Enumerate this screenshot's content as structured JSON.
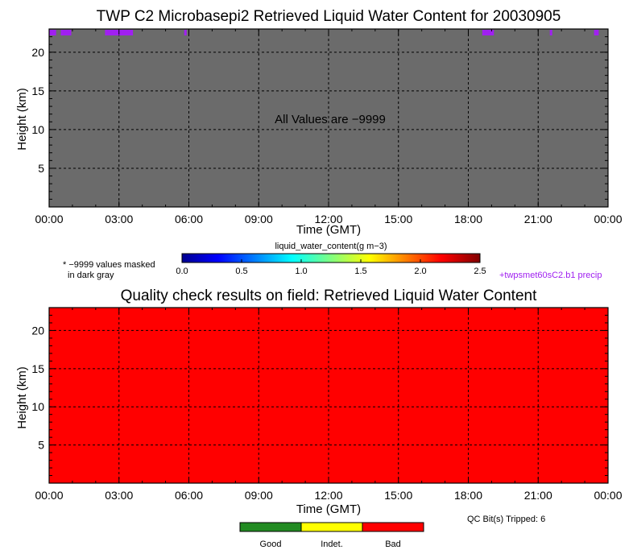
{
  "chart_data": [
    {
      "type": "heatmap",
      "title": "TWP C2 Microbasepi2 Retrieved Liquid Water Content for 20030905",
      "xlabel": "Time (GMT)",
      "ylabel": "Height (km)",
      "x_tick_labels": [
        "00:00",
        "03:00",
        "06:00",
        "09:00",
        "12:00",
        "15:00",
        "18:00",
        "21:00",
        "00:00"
      ],
      "x_ticks_hours": [
        0,
        3,
        6,
        9,
        12,
        15,
        18,
        21,
        24
      ],
      "y_ticks": [
        5,
        10,
        15,
        20
      ],
      "xlim_hours": [
        0,
        24
      ],
      "ylim_km": [
        0,
        23
      ],
      "grid": true,
      "fill_color": "#6b6b6b",
      "annotation": "All Values are −9999",
      "precip_color": "#a020f0",
      "precip_segments_hours": [
        [
          0.0,
          0.3
        ],
        [
          0.5,
          0.95
        ],
        [
          2.4,
          3.6
        ],
        [
          5.8,
          5.9
        ],
        [
          18.6,
          19.1
        ],
        [
          21.5,
          21.6
        ],
        [
          23.4,
          23.6
        ]
      ],
      "colorbar": {
        "label": "liquid_water_content(g m−3)",
        "ticks": [
          "0.0",
          "0.5",
          "1.0",
          "1.5",
          "2.0",
          "2.5"
        ],
        "range": [
          0,
          2.5
        ]
      },
      "mask_note_line1": "* −9999 values masked",
      "mask_note_line2": "in dark gray",
      "precip_note": "+twpsmet60sC2.b1 precip"
    },
    {
      "type": "heatmap",
      "title": "Quality check results on field: Retrieved Liquid Water Content",
      "xlabel": "Time (GMT)",
      "ylabel": "Height (km)",
      "x_tick_labels": [
        "00:00",
        "03:00",
        "06:00",
        "09:00",
        "12:00",
        "15:00",
        "18:00",
        "21:00",
        "00:00"
      ],
      "x_ticks_hours": [
        0,
        3,
        6,
        9,
        12,
        15,
        18,
        21,
        24
      ],
      "y_ticks": [
        5,
        10,
        15,
        20
      ],
      "xlim_hours": [
        0,
        24
      ],
      "ylim_km": [
        0,
        23
      ],
      "grid": true,
      "fill_color": "#ff0000",
      "qc_note": "QC Bit(s) Tripped: 6",
      "legend": [
        {
          "label": "Good",
          "color": "#228b22"
        },
        {
          "label": "Indet.",
          "color": "#ffff00"
        },
        {
          "label": "Bad",
          "color": "#ff0000"
        }
      ]
    }
  ]
}
